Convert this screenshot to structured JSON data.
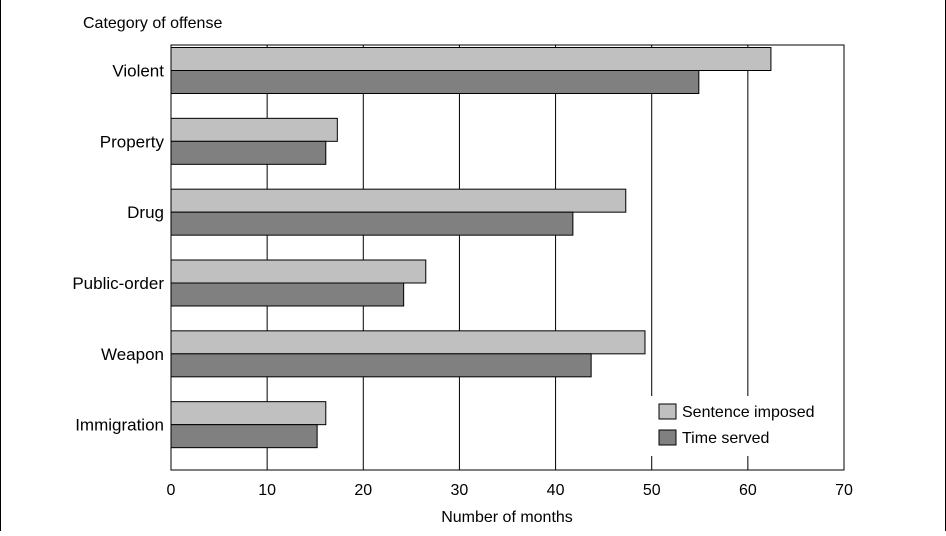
{
  "chart_data": {
    "type": "bar",
    "orientation": "horizontal",
    "title": "",
    "ylabel": "Category of offense",
    "xlabel": "Number of months",
    "xlim": [
      0,
      70
    ],
    "xticks": [
      0,
      10,
      20,
      30,
      40,
      50,
      60,
      70
    ],
    "grid": "vertical",
    "legend_position": "bottom-right",
    "categories": [
      "Violent",
      "Property",
      "Drug",
      "Public-order",
      "Weapon",
      "Immigration"
    ],
    "series": [
      {
        "name": "Sentence imposed",
        "color": "#c0c0c0",
        "values": [
          62.4,
          17.3,
          47.3,
          26.5,
          49.3,
          16.1
        ]
      },
      {
        "name": "Time served",
        "color": "#808080",
        "values": [
          54.9,
          16.1,
          41.8,
          24.2,
          43.7,
          15.2
        ]
      }
    ]
  }
}
